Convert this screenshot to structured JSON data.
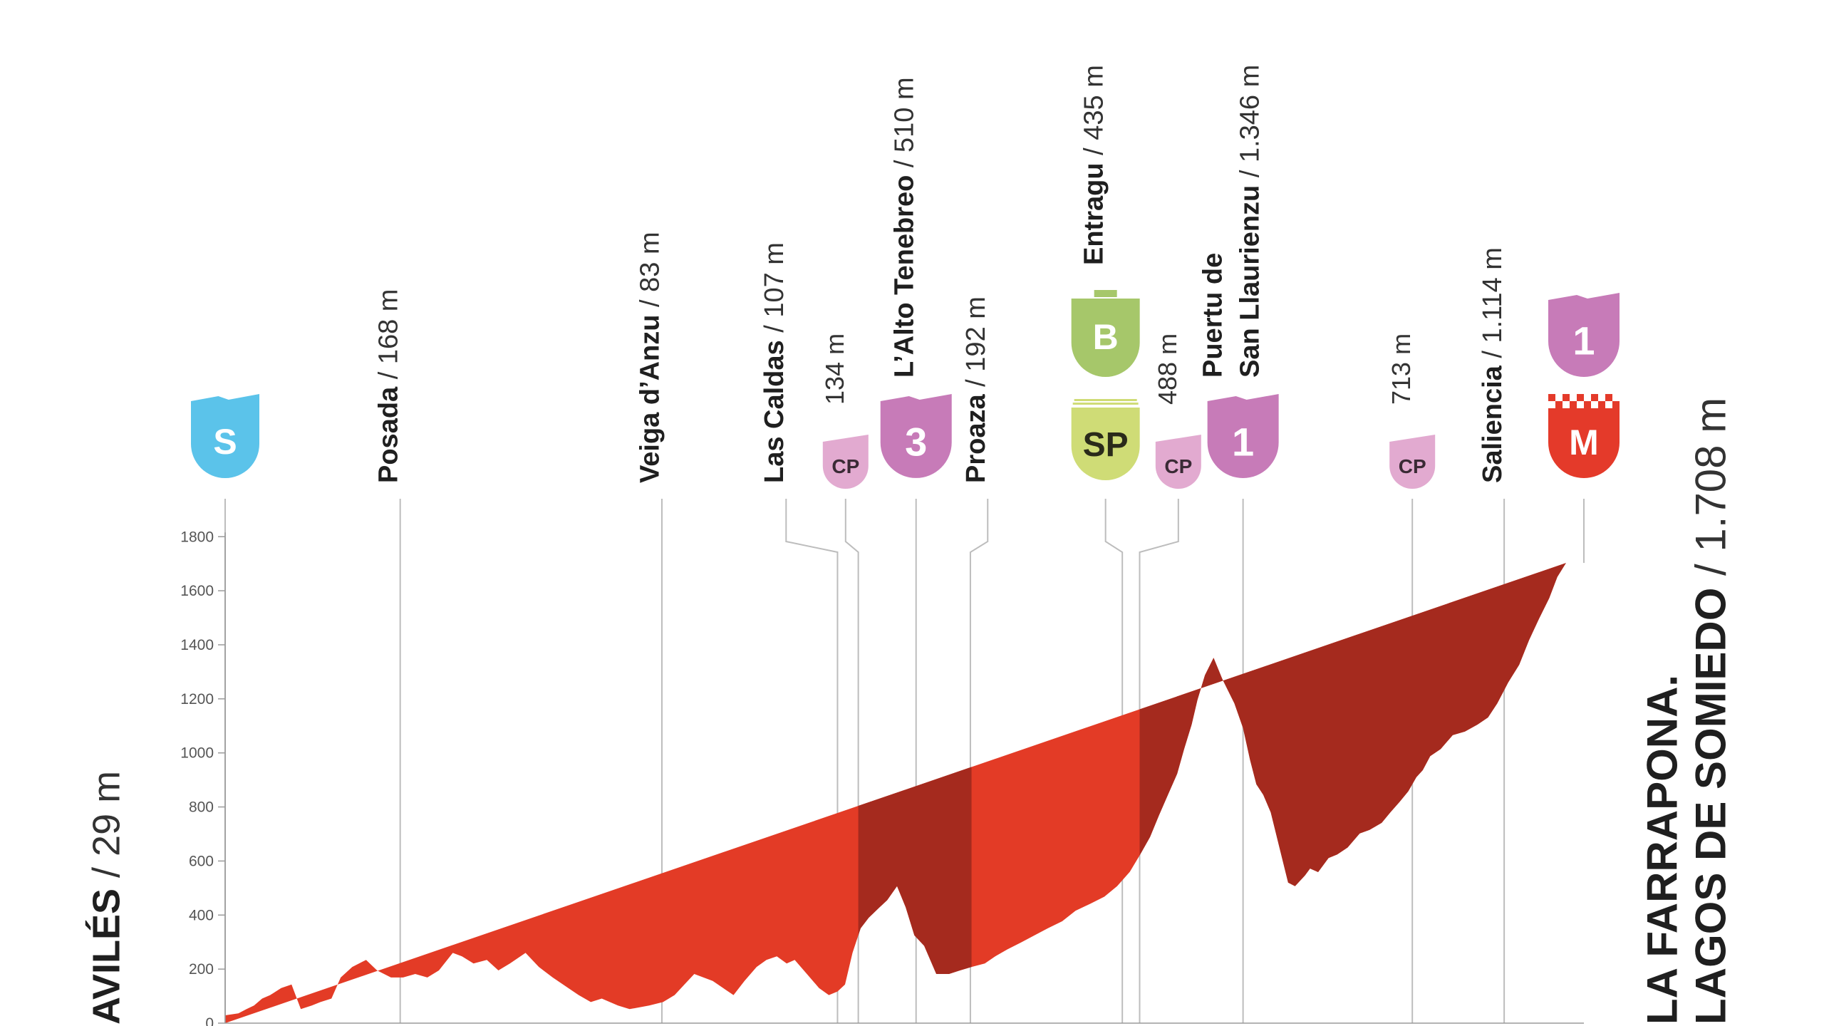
{
  "chart_data": {
    "type": "area",
    "title": "",
    "xlabel": "",
    "ylabel": "",
    "ylim": [
      0,
      1900
    ],
    "y_ticks": [
      "0",
      "200",
      "400",
      "600",
      "800",
      "1000",
      "1200",
      "1400",
      "1600",
      "1800"
    ],
    "grid": false,
    "units": "m",
    "colors": {
      "profile": "#e33b26",
      "climb": "#a52a1e",
      "axis": "#9a9a9a",
      "guide": "#bdbdbd",
      "text": "#1f1f1f",
      "start_badge": "#5bc3ea",
      "cp_badge": "#e2aad0",
      "climb_badge": "#c77bb8",
      "bonus_badge": "#a6c76a",
      "sprint_badge": "#cfdc76",
      "finish_badge": "#e43a2a"
    },
    "profile": {
      "x": [
        0,
        2.3,
        3.7,
        5,
        6.4,
        7.8,
        9.7,
        11.5,
        13.1,
        15,
        16.5,
        18.4,
        20,
        22,
        24.4,
        26.3,
        28.7,
        30.8,
        32.9,
        35,
        37,
        39.4,
        41,
        43,
        45.3,
        47.3,
        49.3,
        52,
        54.3,
        56.7,
        59.4,
        61.2,
        63.3,
        65.2,
        68,
        70,
        73.4,
        75.8,
        77.8,
        79.5,
        81.2,
        84.4,
        88,
        89.9,
        92,
        93.7,
        95.5,
        97.2,
        98.6,
        100.7,
        102.8,
        104.5,
        106,
        107.3,
        108.6,
        110,
        111.4,
        113.3,
        114.6,
        116.3,
        117.8,
        119.3,
        121,
        123.1,
        125.3,
        127.2,
        129.2,
        131.5,
        133.3,
        135.4,
        137.8,
        140.1,
        142.4,
        144.9,
        147.2,
        149.8,
        152.2,
        154.4,
        156.6,
        158.4,
        160.1,
        161.6,
        163.2,
        164.8,
        166,
        167.3,
        168.3,
        169.6,
        171.1,
        172.6,
        174.7,
        176.2,
        177.4,
        178.5,
        179.7,
        181,
        182.5,
        184,
        185.2,
        186.9,
        187.8,
        189.2,
        191,
        192.5,
        194.3,
        196.4,
        198.1,
        200.2,
        201.7,
        203.3,
        204.8,
        206.2,
        207.3,
        208.6,
        210.4,
        212.5,
        214.6,
        216.8,
        218.6,
        220.2,
        222.1,
        224,
        225.7,
        227.4,
        229.2,
        230.6,
        232.1,
        233.8,
        235.2
      ],
      "elevation": [
        29,
        36,
        52,
        65,
        91,
        104,
        130,
        143,
        52,
        65,
        78,
        91,
        169,
        208,
        234,
        195,
        169,
        169,
        182,
        169,
        195,
        260,
        247,
        221,
        234,
        195,
        221,
        260,
        208,
        169,
        130,
        104,
        78,
        91,
        65,
        52,
        65,
        78,
        104,
        143,
        182,
        156,
        104,
        156,
        208,
        234,
        247,
        221,
        234,
        182,
        130,
        104,
        117,
        143,
        260,
        351,
        390,
        429,
        455,
        507,
        429,
        325,
        286,
        182,
        182,
        195,
        208,
        221,
        247,
        273,
        299,
        325,
        351,
        377,
        416,
        442,
        468,
        507,
        560,
        624,
        689,
        767,
        845,
        923,
        1014,
        1105,
        1196,
        1287,
        1352,
        1274,
        1183,
        1092,
        975,
        884,
        845,
        780,
        650,
        520,
        507,
        546,
        572,
        559,
        611,
        624,
        650,
        702,
        715,
        741,
        780,
        819,
        858,
        910,
        936,
        988,
        1014,
        1066,
        1079,
        1105,
        1131,
        1183,
        1261,
        1326,
        1417,
        1495,
        1573,
        1651,
        1703
      ],
      "climb_ranges": [
        [
          109.6,
          129.2
        ],
        [
          158.3,
          235.2
        ]
      ]
    },
    "start": {
      "name": "Avilés",
      "elevation_label": "/ 29 m",
      "km": 0,
      "badge": "S"
    },
    "finish": {
      "name_line1": "La Farrapona.",
      "name_line2": "Lagos de Somiedo",
      "elevation_label": "/ 1.708 m",
      "km": 235.2,
      "badges": [
        "1",
        "M"
      ]
    },
    "points": [
      {
        "name": "Posada",
        "elevation_label": "/ 168 m",
        "km": 30.3,
        "bx": 30.3,
        "elev": 168,
        "badge": ""
      },
      {
        "name": "Veiga d’Anzu",
        "elevation_label": "/ 83 m",
        "km": 75.6,
        "bx": 75.6,
        "elev": 83,
        "badge": ""
      },
      {
        "name": "Las Caldas",
        "elevation_label": "/ 107 m",
        "km": 106.0,
        "bx": 97.1,
        "elev": 107,
        "badge": ""
      },
      {
        "name": "",
        "elevation_label": "134 m",
        "km": 109.6,
        "bx": 107.4,
        "elev": 134,
        "badge": "CP"
      },
      {
        "name": "L’Alto Tenebreo",
        "elevation_label": "/ 510 m",
        "km": 119.6,
        "bx": 119.6,
        "elev": 510,
        "badge": "3"
      },
      {
        "name": "Proaza",
        "elevation_label": "/ 192 m",
        "km": 129.0,
        "bx": 132.0,
        "elev": 192,
        "badge": ""
      },
      {
        "name": "Entragu",
        "elevation_label": "/ 435 m",
        "km": 155.3,
        "bx": 152.4,
        "elev": 435,
        "badge": "SP",
        "badge_top": "B"
      },
      {
        "name": "",
        "elevation_label": "488 m",
        "km": 158.3,
        "bx": 165.0,
        "elev": 488,
        "badge": "CP"
      },
      {
        "name_line1": "Puertu de",
        "name_line2": "San Llaurienzu",
        "elevation_label": "/ 1.346 m",
        "km": 176.2,
        "bx": 176.2,
        "elev": 1346,
        "badge": "1"
      },
      {
        "name": "",
        "elevation_label": "713 m",
        "km": 205.5,
        "bx": 205.5,
        "elev": 713,
        "badge": "CP"
      },
      {
        "name": "Saliencia",
        "elevation_label": "/ 1.114 m",
        "km": 221.4,
        "bx": 221.4,
        "elev": 1114,
        "badge": ""
      }
    ]
  }
}
